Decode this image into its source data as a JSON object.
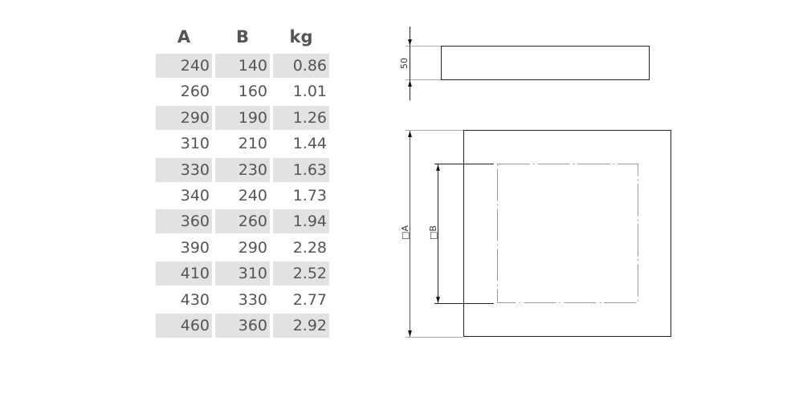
{
  "table": {
    "headers": [
      "A",
      "B",
      "kg"
    ],
    "rows": [
      [
        "240",
        "140",
        "0.86"
      ],
      [
        "260",
        "160",
        "1.01"
      ],
      [
        "290",
        "190",
        "1.26"
      ],
      [
        "310",
        "210",
        "1.44"
      ],
      [
        "330",
        "230",
        "1.63"
      ],
      [
        "340",
        "240",
        "1.73"
      ],
      [
        "360",
        "260",
        "1.94"
      ],
      [
        "390",
        "290",
        "2.28"
      ],
      [
        "410",
        "310",
        "2.52"
      ],
      [
        "430",
        "330",
        "2.77"
      ],
      [
        "460",
        "360",
        "2.92"
      ]
    ]
  },
  "drawing": {
    "height_label": "50",
    "outer_label": "□A",
    "inner_label": "□B"
  }
}
